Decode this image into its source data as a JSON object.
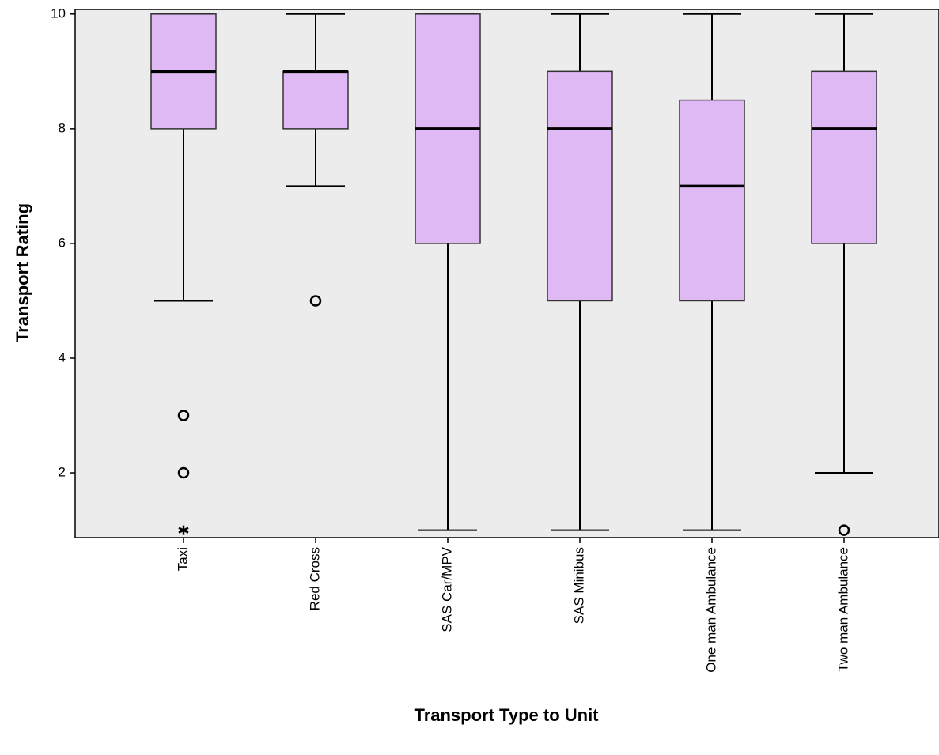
{
  "chart_data": {
    "type": "box",
    "x_label": "Transport Type to Unit",
    "y_label": "Transport Rating",
    "categories": [
      "Taxi",
      "Red Cross",
      "SAS Car/MPV",
      "SAS Minibus",
      "One man Ambulance",
      "Two man Ambulance"
    ],
    "boxes": [
      {
        "min": 5,
        "q1": 8,
        "median": 9,
        "q3": 10,
        "max": 10,
        "outliers": [
          3,
          2
        ],
        "extremes": [
          1
        ]
      },
      {
        "min": 7,
        "q1": 8,
        "median": 9,
        "q3": 9,
        "max": 10,
        "outliers": [
          5
        ],
        "extremes": []
      },
      {
        "min": 1,
        "q1": 6,
        "median": 8,
        "q3": 10,
        "max": 10,
        "outliers": [],
        "extremes": []
      },
      {
        "min": 1,
        "q1": 5,
        "median": 8,
        "q3": 9,
        "max": 10,
        "outliers": [],
        "extremes": []
      },
      {
        "min": 1,
        "q1": 5,
        "median": 7,
        "q3": 8.5,
        "max": 10,
        "outliers": [],
        "extremes": []
      },
      {
        "min": 2,
        "q1": 6,
        "median": 8,
        "q3": 9,
        "max": 10,
        "outliers": [
          1
        ],
        "extremes": []
      }
    ],
    "color": "#dfb9f3",
    "background": "#ececec",
    "ylim": [
      0.87,
      10.08
    ],
    "yticks": [
      2,
      4,
      6,
      8,
      10
    ]
  }
}
